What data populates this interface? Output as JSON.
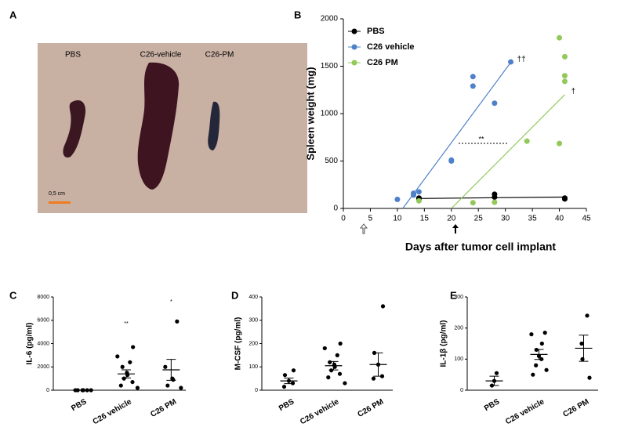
{
  "photo": {
    "panel": "A",
    "labels": [
      "PBS",
      "C26-vehicle",
      "C26-PM"
    ],
    "scale_bar": "0,5 cm"
  },
  "chart_data": [
    {
      "type": "scatter",
      "panel": "B",
      "x_label": "Days after tumor cell implant",
      "y_label": "Spleen weight (mg)",
      "xlim": [
        0,
        45
      ],
      "xticks": [
        0,
        5,
        10,
        15,
        20,
        25,
        30,
        35,
        40,
        45
      ],
      "ylim": [
        0,
        2000
      ],
      "yticks": [
        0,
        500,
        1000,
        1500,
        2000
      ],
      "legend": "upper-left",
      "comparison": "**",
      "series": [
        {
          "name": "PBS",
          "color": "#000000",
          "x": [
            14,
            14,
            28,
            28,
            41,
            41
          ],
          "values": [
            100,
            110,
            150,
            120,
            110,
            100
          ],
          "fit_x": [
            14,
            41
          ],
          "fit_y": [
            105,
            120
          ]
        },
        {
          "name": "C26 vehicle",
          "color": "#4f81c8",
          "x": [
            10,
            13,
            13,
            14,
            20,
            20,
            24,
            24,
            28,
            31
          ],
          "values": [
            95,
            140,
            160,
            175,
            500,
            510,
            1390,
            1290,
            1110,
            1545
          ],
          "fit_x": [
            11,
            31
          ],
          "fit_y": [
            0,
            1540
          ],
          "annotation": "††"
        },
        {
          "name": "C26 PM",
          "color": "#92c95a",
          "x": [
            14,
            24,
            28,
            34,
            40,
            40,
            41,
            41,
            41
          ],
          "values": [
            80,
            60,
            65,
            710,
            685,
            1800,
            1600,
            1400,
            1340
          ],
          "fit_x": [
            20,
            41
          ],
          "fit_y": [
            0,
            1200
          ],
          "annotation": "†"
        }
      ]
    },
    {
      "type": "dotplot",
      "panel": "C",
      "y_label": "IL-6 (pg/ml)",
      "color": "#000000",
      "categories": [
        "PBS",
        "C26 vehicle",
        "C26 PM"
      ],
      "values": [
        [
          0,
          0,
          0,
          0,
          0,
          0
        ],
        [
          3700,
          2900,
          2400,
          2000,
          1500,
          1300,
          1000,
          700,
          400,
          200
        ],
        [
          5900,
          2000,
          1000,
          900,
          400,
          200
        ]
      ],
      "mean": [
        0,
        1400,
        1750
      ],
      "sem": [
        0,
        350,
        900
      ],
      "significance": [
        null,
        "**",
        "*"
      ],
      "ylim": [
        0,
        8000
      ],
      "yticks": [
        0,
        2000,
        4000,
        6000,
        8000
      ]
    },
    {
      "type": "dotplot",
      "panel": "D",
      "y_label": "M-CSF (pg/ml)",
      "color": "#000000",
      "categories": [
        "PBS",
        "C26 vehicle",
        "C26 PM"
      ],
      "values": [
        [
          85,
          65,
          40,
          30,
          15
        ],
        [
          200,
          180,
          150,
          120,
          110,
          100,
          85,
          70,
          55,
          30
        ],
        [
          360,
          160,
          110,
          60,
          50
        ]
      ],
      "mean": [
        40,
        105,
        110
      ],
      "sem": [
        12,
        18,
        50
      ],
      "ylim": [
        0,
        400
      ],
      "yticks": [
        0,
        100,
        200,
        300,
        400
      ]
    },
    {
      "type": "dotplot",
      "panel": "E",
      "y_label": "IL-1β (pg/ml)",
      "color": "#000000",
      "categories": [
        "PBS",
        "C26 vehicle",
        "C26 PM"
      ],
      "values": [
        [
          55,
          30,
          15
        ],
        [
          185,
          180,
          150,
          130,
          110,
          100,
          80,
          65,
          50
        ],
        [
          240,
          150,
          100,
          40
        ]
      ],
      "mean": [
        30,
        115,
        135
      ],
      "sem": [
        15,
        16,
        42
      ],
      "ylim": [
        0,
        300
      ],
      "yticks": [
        0,
        100,
        200,
        300
      ]
    }
  ]
}
